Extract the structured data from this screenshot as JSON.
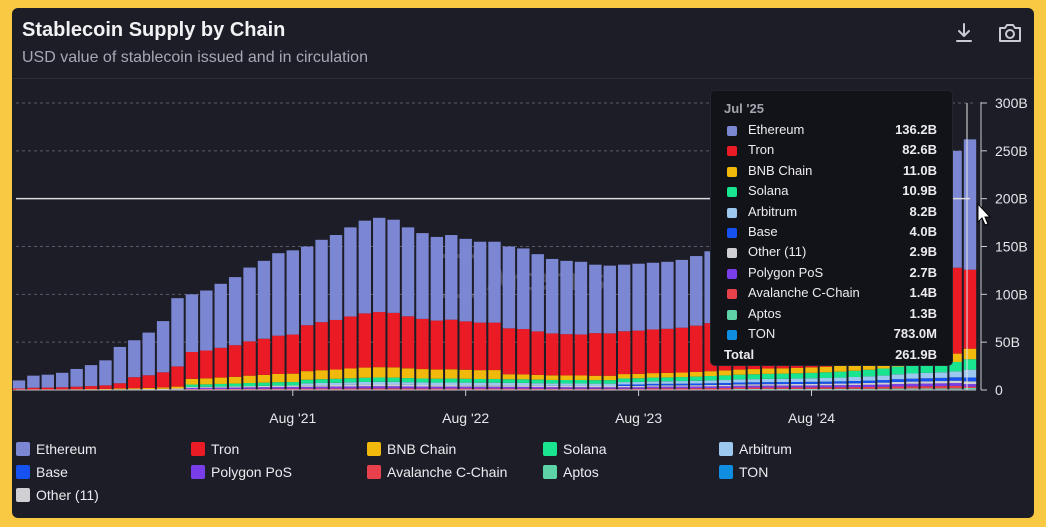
{
  "header": {
    "title": "Stablecoin Supply by Chain",
    "subtitle": "USD value of stablecoin issued and in circulation",
    "download_icon": "download-icon",
    "camera_icon": "camera-icon"
  },
  "watermark": "Artemis",
  "colors": {
    "Ethereum": "#7c87d3",
    "Tron": "#eb1b25",
    "BNB Chain": "#f0b90b",
    "Solana": "#19e48f",
    "Arbitrum": "#9cc7ee",
    "Base": "#1652f0",
    "Other (11)": "#d0d0d4",
    "Polygon PoS": "#7a3ee8",
    "Avalanche C-Chain": "#e8414b",
    "Aptos": "#5fd3a8",
    "TON": "#0f8de0"
  },
  "chart_data": {
    "type": "bar",
    "stacked": true,
    "title": "Stablecoin Supply by Chain",
    "subtitle": "USD value of stablecoin issued and in circulation",
    "x_tick_labels": [
      "Aug '21",
      "Aug '22",
      "Aug '23",
      "Aug '24"
    ],
    "y_tick_labels": [
      "0",
      "50B",
      "100B",
      "150B",
      "200B",
      "250B",
      "300B"
    ],
    "ylim": [
      0,
      300
    ],
    "y_unit": "B",
    "months": [
      "Jan '20",
      "Feb '20",
      "Mar '20",
      "Apr '20",
      "May '20",
      "Jun '20",
      "Jul '20",
      "Aug '20",
      "Sep '20",
      "Oct '20",
      "Nov '20",
      "Dec '20",
      "Jan '21",
      "Feb '21",
      "Mar '21",
      "Apr '21",
      "May '21",
      "Jun '21",
      "Jul '21",
      "Aug '21",
      "Sep '21",
      "Oct '21",
      "Nov '21",
      "Dec '21",
      "Jan '22",
      "Feb '22",
      "Mar '22",
      "Apr '22",
      "May '22",
      "Jun '22",
      "Jul '22",
      "Aug '22",
      "Sep '22",
      "Oct '22",
      "Nov '22",
      "Dec '22",
      "Jan '23",
      "Feb '23",
      "Mar '23",
      "Apr '23",
      "May '23",
      "Jun '23",
      "Jul '23",
      "Aug '23",
      "Sep '23",
      "Oct '23",
      "Nov '23",
      "Dec '23",
      "Jan '24",
      "Feb '24",
      "Mar '24",
      "Apr '24",
      "May '24",
      "Jun '24",
      "Jul '24",
      "Aug '24",
      "Sep '24",
      "Oct '24",
      "Nov '24",
      "Dec '24",
      "Jan '25",
      "Feb '25",
      "Mar '25",
      "Apr '25",
      "May '25",
      "Jun '25",
      "Jul '25"
    ],
    "totals": [
      10,
      15,
      16,
      18,
      22,
      26,
      31,
      45,
      52,
      60,
      72,
      96,
      100,
      104,
      111,
      118,
      128,
      135,
      143,
      146,
      150,
      157,
      162,
      170,
      177,
      180,
      178,
      170,
      164,
      160,
      162,
      158,
      155,
      155,
      150,
      148,
      142,
      137,
      135,
      134,
      131,
      130,
      131,
      132,
      133,
      134,
      136,
      140,
      145,
      150,
      152,
      155,
      158,
      159,
      161,
      164,
      168,
      173,
      180,
      188,
      198,
      215,
      225,
      232,
      240,
      250,
      261.9
    ],
    "x_scale": {
      "ticks": [
        {
          "label": "Aug '21",
          "index": 19
        },
        {
          "label": "Aug '22",
          "index": 31
        },
        {
          "label": "Aug '23",
          "index": 43
        },
        {
          "label": "Aug '24",
          "index": 55
        }
      ]
    },
    "legend_position": "bottom",
    "reference_line": "~200B",
    "watermark": "Artemis",
    "hover": {
      "month": "Jul '25",
      "series": [
        {
          "name": "Ethereum",
          "value": "136.2B",
          "v": 136.2
        },
        {
          "name": "Tron",
          "value": "82.6B",
          "v": 82.6
        },
        {
          "name": "BNB Chain",
          "value": "11.0B",
          "v": 11.0
        },
        {
          "name": "Solana",
          "value": "10.9B",
          "v": 10.9
        },
        {
          "name": "Arbitrum",
          "value": "8.2B",
          "v": 8.2
        },
        {
          "name": "Base",
          "value": "4.0B",
          "v": 4.0
        },
        {
          "name": "Other (11)",
          "value": "2.9B",
          "v": 2.9
        },
        {
          "name": "Polygon PoS",
          "value": "2.7B",
          "v": 2.7
        },
        {
          "name": "Avalanche C-Chain",
          "value": "1.4B",
          "v": 1.4
        },
        {
          "name": "Aptos",
          "value": "1.3B",
          "v": 1.3
        },
        {
          "name": "TON",
          "value": "783.0M",
          "v": 0.783
        }
      ],
      "total_label": "Total",
      "total_value": "261.9B"
    },
    "series_names": [
      "Ethereum",
      "Tron",
      "BNB Chain",
      "Solana",
      "Arbitrum",
      "Base",
      "Polygon PoS",
      "Avalanche C-Chain",
      "Aptos",
      "TON",
      "Other (11)"
    ]
  },
  "legend": [
    [
      "Ethereum",
      "Tron",
      "BNB Chain",
      "Solana",
      "Arbitrum"
    ],
    [
      "Base",
      "Polygon PoS",
      "Avalanche C-Chain",
      "Aptos",
      "TON"
    ],
    [
      "Other (11)"
    ]
  ]
}
